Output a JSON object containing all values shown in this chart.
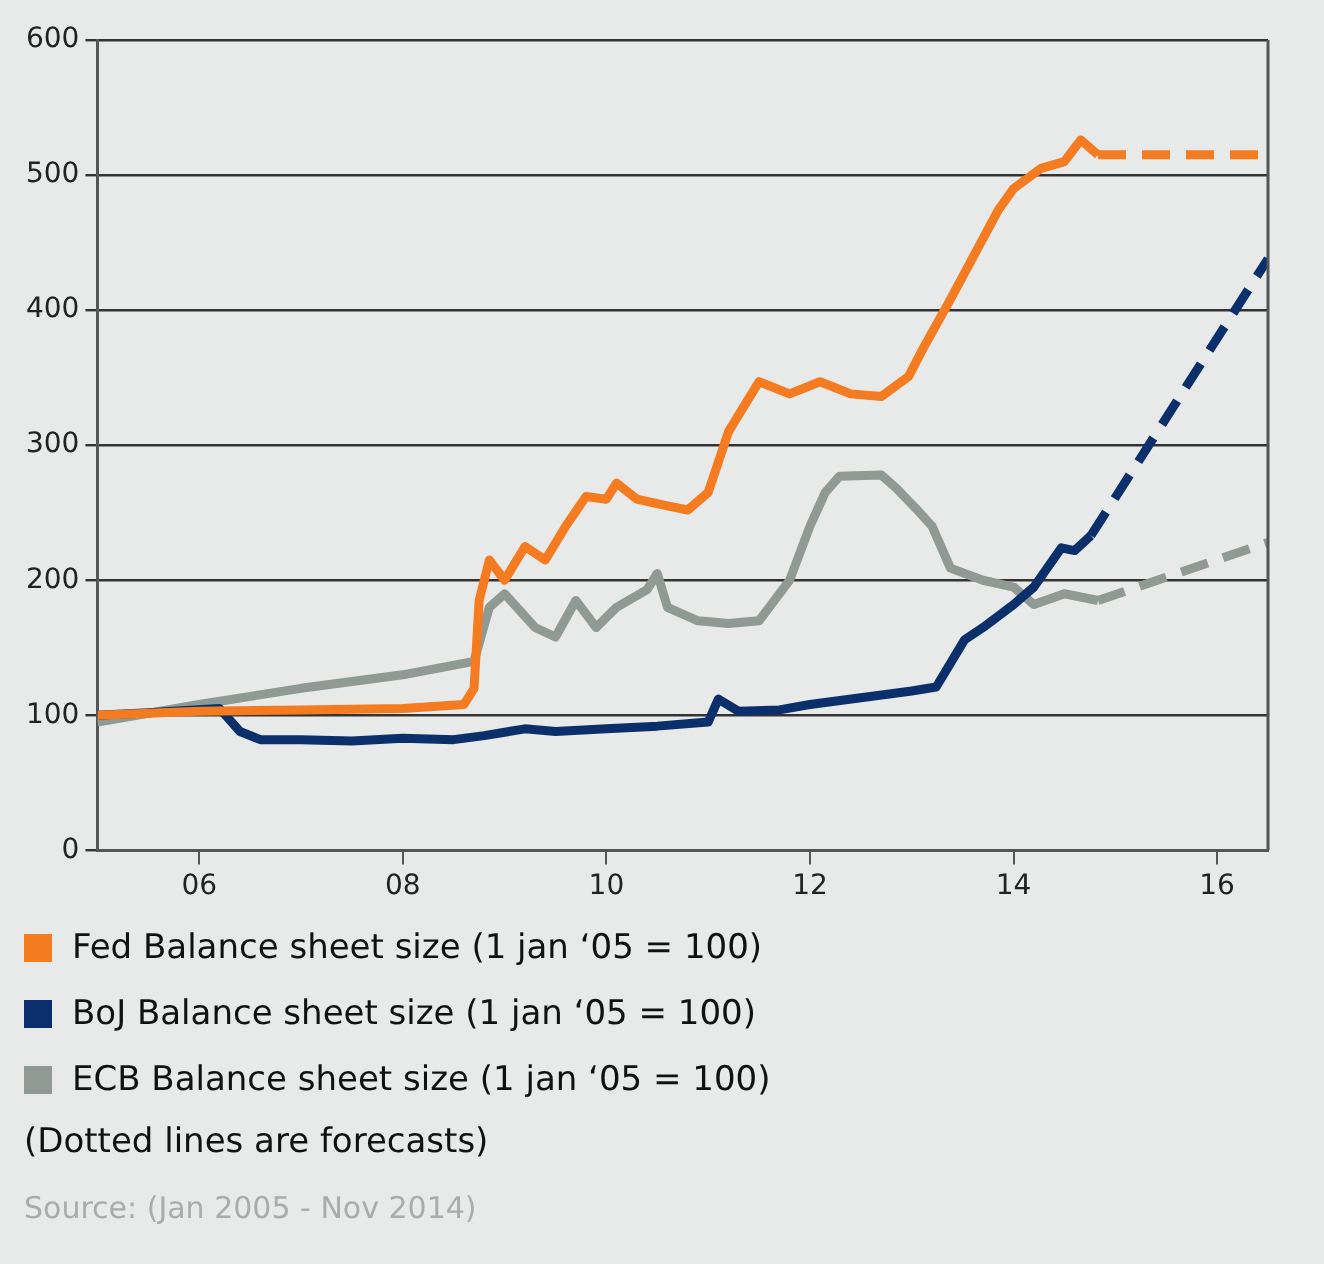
{
  "chart_data": {
    "type": "line",
    "xlim": [
      2005,
      2016.5
    ],
    "xticks": [
      {
        "value": 2006,
        "label": "06"
      },
      {
        "value": 2008,
        "label": "08"
      },
      {
        "value": 2010,
        "label": "10"
      },
      {
        "value": 2012,
        "label": "12"
      },
      {
        "value": 2014,
        "label": "14"
      },
      {
        "value": 2016,
        "label": "16"
      }
    ],
    "ylim": [
      0,
      600
    ],
    "yticks": [
      0,
      100,
      200,
      300,
      400,
      500,
      600
    ],
    "grid": "y",
    "legend": "bottom",
    "marker": "none",
    "series": [
      {
        "name": "Fed Balance sheet size (1 jan ‘05 = 100)",
        "color": "#f47b20",
        "line_style": "solid",
        "x": [
          2005,
          2006,
          2007,
          2008,
          2008.6,
          2008.7,
          2008.75,
          2008.85,
          2009.0,
          2009.2,
          2009.4,
          2009.6,
          2009.8,
          2010.0,
          2010.1,
          2010.3,
          2010.6,
          2010.8,
          2011.0,
          2011.2,
          2011.5,
          2011.8,
          2012.1,
          2012.4,
          2012.7,
          2012.97,
          2013.1,
          2013.38,
          2013.85,
          2014.0,
          2014.27,
          2014.5,
          2014.66,
          2014.83
        ],
        "values": [
          100,
          103,
          104,
          105,
          108,
          120,
          185,
          215,
          200,
          225,
          215,
          240,
          262,
          260,
          272,
          260,
          255,
          252,
          265,
          310,
          347,
          338,
          347,
          338,
          336,
          351,
          370,
          408,
          474,
          490,
          505,
          510,
          526,
          515
        ]
      },
      {
        "color": "#f47b20",
        "line_style": "dashed",
        "x": [
          2014.83,
          2016.5
        ],
        "values": [
          515,
          515
        ]
      },
      {
        "name": "BoJ Balance sheet size (1 jan ‘05 = 100)",
        "color": "#0b2f6b",
        "line_style": "solid",
        "x": [
          2005,
          2005.5,
          2006.2,
          2006.4,
          2006.6,
          2007,
          2007.5,
          2008,
          2008.5,
          2008.8,
          2009.2,
          2009.5,
          2010,
          2010.5,
          2011,
          2011.1,
          2011.3,
          2011.7,
          2012,
          2012.5,
          2013.0,
          2013.24,
          2013.52,
          2013.7,
          2014.0,
          2014.2,
          2014.47,
          2014.6,
          2014.76
        ],
        "values": [
          100,
          102,
          105,
          88,
          82,
          82,
          81,
          83,
          82,
          85,
          90,
          88,
          90,
          92,
          95,
          112,
          103,
          104,
          108,
          113,
          118,
          121,
          156,
          165,
          182,
          195,
          224,
          222,
          233
        ]
      },
      {
        "color": "#0b2f6b",
        "line_style": "dashed",
        "x": [
          2014.76,
          2016.5
        ],
        "values": [
          233,
          438
        ]
      },
      {
        "name": "ECB Balance sheet size (1 jan ‘05 = 100)",
        "color": "#8e9a93",
        "line_style": "solid",
        "x": [
          2005,
          2006,
          2007,
          2008,
          2008.7,
          2008.85,
          2009.0,
          2009.3,
          2009.5,
          2009.7,
          2009.9,
          2010.1,
          2010.4,
          2010.5,
          2010.6,
          2010.9,
          2011.2,
          2011.5,
          2011.8,
          2012.0,
          2012.15,
          2012.29,
          2012.7,
          2012.85,
          2013.03,
          2013.2,
          2013.38,
          2013.7,
          2014.0,
          2014.2,
          2014.5,
          2014.83
        ],
        "values": [
          95,
          108,
          120,
          130,
          140,
          180,
          190,
          165,
          158,
          185,
          165,
          180,
          193,
          205,
          180,
          170,
          168,
          170,
          200,
          240,
          265,
          277,
          278,
          268,
          254,
          240,
          209,
          200,
          195,
          182,
          190,
          185
        ]
      },
      {
        "color": "#8e9a93",
        "line_style": "dashed",
        "x": [
          2014.83,
          2016.5
        ],
        "values": [
          185,
          228
        ]
      }
    ],
    "annotations": [
      "(Dotted lines are forecasts)",
      "Source: (Jan 2005 - Nov 2014)"
    ]
  }
}
